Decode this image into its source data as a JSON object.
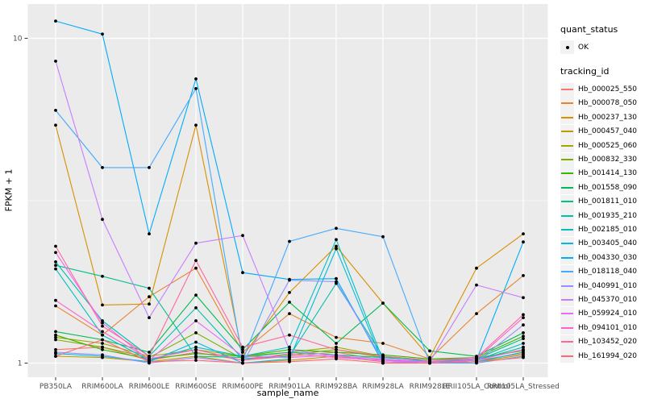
{
  "chart_data": {
    "type": "line",
    "title": "",
    "xlabel": "sample_name",
    "ylabel": "FPKM + 1",
    "y_scale": "log10",
    "y_ticks": [
      1,
      10
    ],
    "ylim": [
      1,
      12
    ],
    "grid": true,
    "legend_position": "right",
    "point_marker": "small-black-point",
    "categories": [
      "PB350LA",
      "RRIM600LA",
      "RRIM600LE",
      "RRIM600SE",
      "RRIM600PE",
      "RRIM901LA",
      "RRIM928BA",
      "RRIM928LA",
      "RRIM928LE",
      "RRII105LA_Control",
      "RRII105LA_Stressed"
    ],
    "series": [
      {
        "name": "Hb_000025_550",
        "color": "#F8766D",
        "values": [
          1.1,
          1.12,
          1.02,
          1.08,
          1.02,
          1.05,
          1.08,
          1.02,
          1.01,
          1.02,
          1.07
        ]
      },
      {
        "name": "Hb_000078_050",
        "color": "#EA8331",
        "values": [
          1.5,
          1.22,
          1.6,
          1.96,
          1.08,
          1.42,
          1.2,
          1.15,
          1.03,
          1.42,
          1.86
        ]
      },
      {
        "name": "Hb_000237_130",
        "color": "#D89000",
        "values": [
          5.4,
          1.51,
          1.52,
          5.4,
          1.05,
          1.65,
          2.29,
          1.53,
          1.04,
          1.96,
          2.5
        ]
      },
      {
        "name": "Hb_000457_040",
        "color": "#C09B00",
        "values": [
          1.05,
          1.04,
          1.01,
          1.05,
          1.0,
          1.02,
          1.05,
          1.01,
          1.0,
          1.01,
          1.06
        ]
      },
      {
        "name": "Hb_000525_060",
        "color": "#A3A500",
        "values": [
          1.2,
          1.15,
          1.05,
          1.1,
          1.05,
          1.08,
          1.12,
          1.05,
          1.02,
          1.04,
          1.09
        ]
      },
      {
        "name": "Hb_000832_330",
        "color": "#7CAE00",
        "values": [
          1.18,
          1.12,
          1.04,
          1.24,
          1.03,
          1.06,
          1.1,
          1.04,
          1.02,
          1.03,
          1.1
        ]
      },
      {
        "name": "Hb_001414_130",
        "color": "#39B600",
        "values": [
          1.22,
          1.1,
          1.03,
          1.07,
          1.05,
          1.1,
          1.08,
          1.06,
          1.03,
          1.04,
          1.21
        ]
      },
      {
        "name": "Hb_001558_090",
        "color": "#00BB4E",
        "values": [
          1.25,
          1.18,
          1.08,
          1.62,
          1.1,
          1.54,
          1.15,
          1.53,
          1.09,
          1.05,
          1.24
        ]
      },
      {
        "name": "Hb_001811_010",
        "color": "#00C08B",
        "values": [
          2.0,
          1.85,
          1.7,
          1.05,
          1.04,
          1.08,
          1.06,
          1.04,
          1.02,
          1.03,
          1.19
        ]
      },
      {
        "name": "Hb_001935_210",
        "color": "#00C0B2",
        "values": [
          2.05,
          1.35,
          1.05,
          1.48,
          1.03,
          1.05,
          1.76,
          1.05,
          1.01,
          1.02,
          1.12
        ]
      },
      {
        "name": "Hb_002185_010",
        "color": "#00BFC4",
        "values": [
          1.95,
          1.22,
          1.02,
          1.12,
          1.05,
          1.12,
          2.4,
          1.02,
          1.01,
          1.02,
          1.15
        ]
      },
      {
        "name": "Hb_003405_040",
        "color": "#00BAE0",
        "values": [
          1.07,
          1.05,
          1.01,
          1.16,
          1.0,
          1.03,
          2.25,
          1.0,
          1.0,
          1.01,
          1.08
        ]
      },
      {
        "name": "Hb_004330_030",
        "color": "#00ACFC",
        "values": [
          11.3,
          10.3,
          2.5,
          7.5,
          1.9,
          1.81,
          1.82,
          1.0,
          1.0,
          1.02,
          2.36
        ]
      },
      {
        "name": "Hb_018118_040",
        "color": "#45A9FF",
        "values": [
          6.0,
          4.0,
          4.0,
          7.0,
          1.02,
          2.37,
          2.6,
          2.45,
          1.0,
          1.0,
          1.05
        ]
      },
      {
        "name": "Hb_040991_010",
        "color": "#9590FF",
        "values": [
          1.08,
          1.06,
          1.0,
          1.04,
          1.0,
          1.8,
          1.78,
          1.02,
          1.0,
          1.01,
          1.31
        ]
      },
      {
        "name": "Hb_045370_010",
        "color": "#C77CFF",
        "values": [
          8.5,
          2.77,
          1.38,
          2.34,
          2.47,
          1.1,
          1.05,
          1.03,
          1.01,
          1.74,
          1.59
        ]
      },
      {
        "name": "Hb_059924_010",
        "color": "#E76BF3",
        "values": [
          2.19,
          1.33,
          1.02,
          1.35,
          1.05,
          1.04,
          1.06,
          1.01,
          1.0,
          1.02,
          1.1
        ]
      },
      {
        "name": "Hb_094101_010",
        "color": "#FC61CF",
        "values": [
          1.56,
          1.25,
          1.03,
          1.1,
          1.02,
          1.07,
          1.04,
          1.02,
          1.01,
          1.03,
          1.38
        ]
      },
      {
        "name": "Hb_103452_020",
        "color": "#FF66A1",
        "values": [
          2.29,
          1.3,
          1.05,
          2.07,
          1.12,
          1.22,
          1.1,
          1.05,
          1.02,
          1.04,
          1.41
        ]
      },
      {
        "name": "Hb_161994_020",
        "color": "#FF6877",
        "values": [
          1.05,
          1.18,
          1.01,
          1.02,
          1.0,
          1.01,
          1.03,
          1.0,
          1.0,
          1.01,
          1.04
        ]
      }
    ]
  },
  "legend": {
    "quant_status_title": "quant_status",
    "quant_status_items": [
      {
        "label": "OK",
        "marker": "black-point"
      }
    ],
    "tracking_title": "tracking_id"
  },
  "colors": {
    "panel_bg": "#EBEBEB",
    "grid_major": "#FFFFFF",
    "grid_minor": "#F5F5F5",
    "legend_key_bg": "#F2F2F2",
    "tick_mark": "#333333",
    "tick_text": "#4D4D4D",
    "point": "#000000"
  }
}
